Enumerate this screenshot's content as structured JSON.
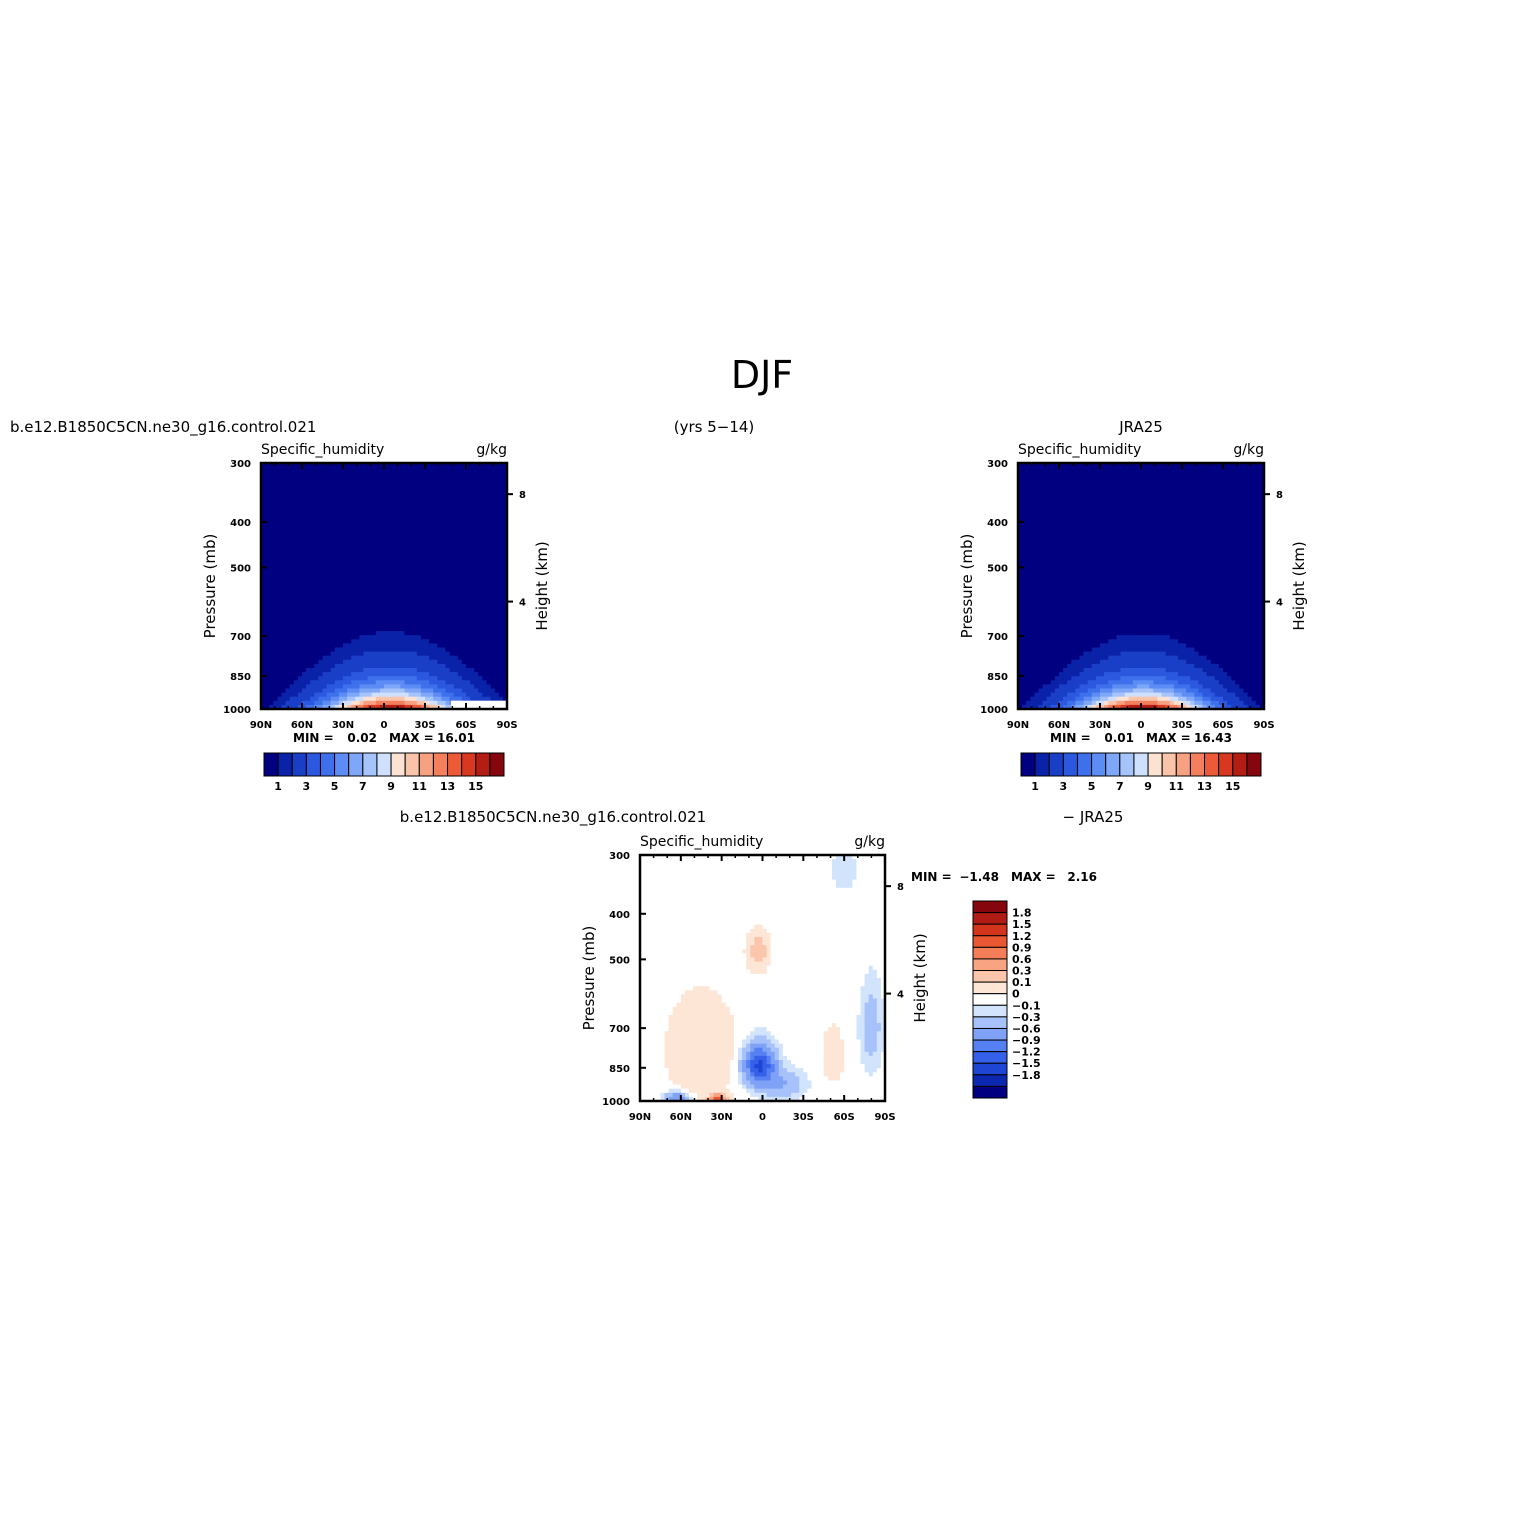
{
  "figure": {
    "title": "DJF",
    "years": "(yrs 5−14)",
    "case_name": "b.e12.B1850C5CN.ne30_g16.control.021",
    "reference_name": "JRA25",
    "diff_left": "b.e12.B1850C5CN.ne30_g16.control.021",
    "diff_right": "− JRA25"
  },
  "colors": {
    "main": [
      "#000080",
      "#0a22a8",
      "#1a3fc7",
      "#2b58de",
      "#3f70ec",
      "#5c8cf4",
      "#7fa7f8",
      "#a6c3fb",
      "#cfe0fd",
      "#fbe2d3",
      "#f9c4aa",
      "#f6a282",
      "#f37f5d",
      "#ec5a37",
      "#d8381f",
      "#b31d14",
      "#85070d"
    ],
    "diff": [
      "#000080",
      "#0c27b0",
      "#1f45d4",
      "#3560ea",
      "#5580f2",
      "#7fa2f7",
      "#a7c2fa",
      "#d2e3fc",
      "#ffffff",
      "#fde6d6",
      "#fbc6ab",
      "#f8a482",
      "#f47e58",
      "#ea5733",
      "#d5341c",
      "#b01b13",
      "#85070d"
    ]
  },
  "chart_data": [
    {
      "type": "heatmap",
      "id": "model",
      "title": "Specific_humidity",
      "units": "g/kg",
      "ylabel": "Pressure (mb)",
      "ylabel_right": "Height (km)",
      "x_ticks": [
        "90N",
        "60N",
        "30N",
        "0",
        "30S",
        "60S",
        "90S"
      ],
      "y_ticks": [
        300,
        400,
        500,
        700,
        850,
        1000
      ],
      "y_ticks_right": [
        8,
        4
      ],
      "ylim": [
        1000,
        300
      ],
      "xlim": [
        90,
        -90
      ],
      "levels": [
        0.5,
        1,
        2,
        3,
        4,
        5,
        6,
        7,
        8,
        9,
        10,
        11,
        12,
        13,
        14,
        15,
        16
      ],
      "min_label": "MIN =",
      "min_value": "0.02",
      "max_label": "MAX =",
      "max_value": "16.01",
      "colorbar_labels": [
        "1",
        "3",
        "5",
        "7",
        "9",
        "11",
        "13",
        "15"
      ],
      "field": {
        "peak": 16.01,
        "center_lat": -3,
        "lat_scale": 34,
        "scale_height": 90,
        "asym": 0.25
      },
      "missing_region": {
        "lat": [
          -49,
          -90
        ],
        "p": [
          960,
          1000
        ]
      }
    },
    {
      "type": "heatmap",
      "id": "obs",
      "title": "Specific_humidity",
      "units": "g/kg",
      "ylabel": "Pressure (mb)",
      "ylabel_right": "Height (km)",
      "x_ticks": [
        "90N",
        "60N",
        "30N",
        "0",
        "30S",
        "60S",
        "90S"
      ],
      "y_ticks": [
        300,
        400,
        500,
        700,
        850,
        1000
      ],
      "y_ticks_right": [
        8,
        4
      ],
      "ylim": [
        1000,
        300
      ],
      "xlim": [
        90,
        -90
      ],
      "levels": [
        0.5,
        1,
        2,
        3,
        4,
        5,
        6,
        7,
        8,
        9,
        10,
        11,
        12,
        13,
        14,
        15,
        16
      ],
      "min_label": "MIN =",
      "min_value": "0.01",
      "max_label": "MAX =",
      "max_value": "16.43",
      "colorbar_labels": [
        "1",
        "3",
        "5",
        "7",
        "9",
        "11",
        "13",
        "15"
      ],
      "field": {
        "peak": 16.43,
        "center_lat": 0,
        "lat_scale": 33,
        "scale_height": 88,
        "asym": 0.15
      }
    },
    {
      "type": "heatmap",
      "id": "diff",
      "title": "Specific_humidity",
      "units": "g/kg",
      "ylabel": "Pressure (mb)",
      "ylabel_right": "Height (km)",
      "x_ticks": [
        "90N",
        "60N",
        "30N",
        "0",
        "30S",
        "60S",
        "90S"
      ],
      "y_ticks": [
        300,
        400,
        500,
        700,
        850,
        1000
      ],
      "y_ticks_right": [
        8,
        4
      ],
      "ylim": [
        1000,
        300
      ],
      "xlim": [
        90,
        -90
      ],
      "levels": [
        -1.8,
        -1.5,
        -1.2,
        -0.9,
        -0.6,
        -0.3,
        -0.1,
        0,
        0.1,
        0.3,
        0.6,
        0.9,
        1.2,
        1.5,
        1.8
      ],
      "min_label": "MIN =",
      "min_value": "−1.48",
      "max_label": "MAX =",
      "max_value": "2.16",
      "colorbar_labels": [
        "1.8",
        "1.5",
        "1.2",
        "0.9",
        "0.6",
        "0.3",
        "0.1",
        "0",
        "−0.1",
        "−0.3",
        "−0.6",
        "−0.9",
        "−1.2",
        "−1.5",
        "−1.8"
      ],
      "missing_region": {
        "lat": [
          -49,
          -90
        ],
        "p": [
          955,
          1000
        ]
      }
    }
  ]
}
